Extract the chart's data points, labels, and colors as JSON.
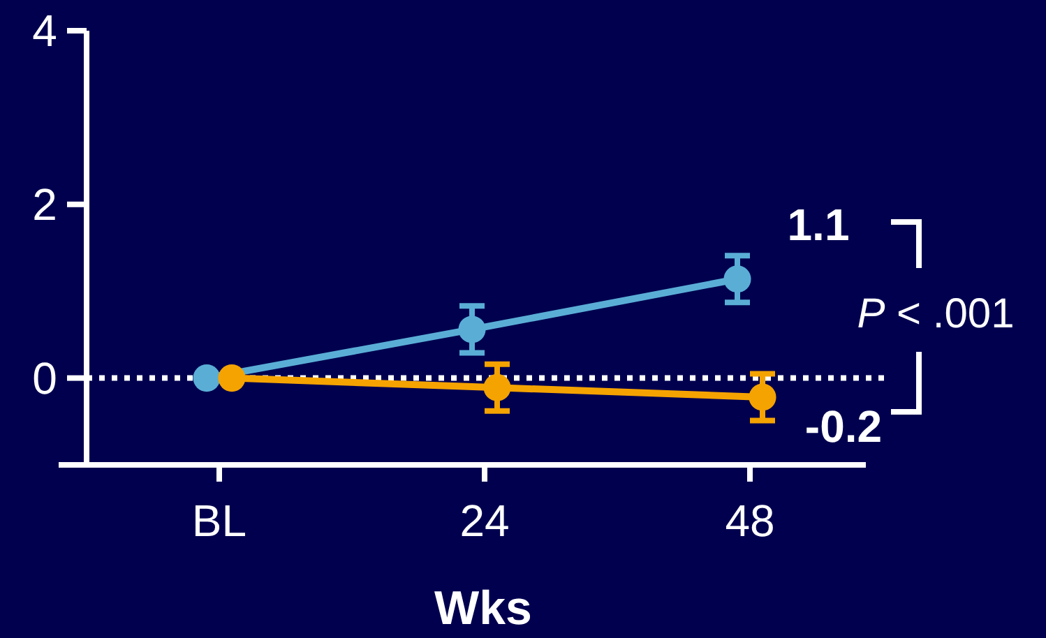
{
  "chart_data": {
    "type": "line",
    "xlabel": "Wks",
    "categories": [
      "BL",
      "24",
      "48"
    ],
    "series": [
      {
        "color": "#5aaed6",
        "values": [
          0,
          0.56,
          1.14
        ],
        "errors": [
          null,
          0.27,
          0.27
        ],
        "value_labels": [
          null,
          null,
          "1.1"
        ]
      },
      {
        "color": "#f5a300",
        "values": [
          0,
          -0.11,
          -0.22
        ],
        "errors": [
          null,
          0.27,
          0.27
        ],
        "value_labels": [
          null,
          null,
          "-0.2"
        ]
      }
    ],
    "ylim": [
      -1,
      4
    ],
    "yticks": [
      0,
      2,
      4
    ],
    "grid": false,
    "marker": "circle",
    "line_style": "solid",
    "ref_lines": [
      {
        "axis": "y",
        "value": 0,
        "line_style": "dotted",
        "color": "#ffffff"
      }
    ],
    "annotations": [
      "P < .001"
    ]
  }
}
